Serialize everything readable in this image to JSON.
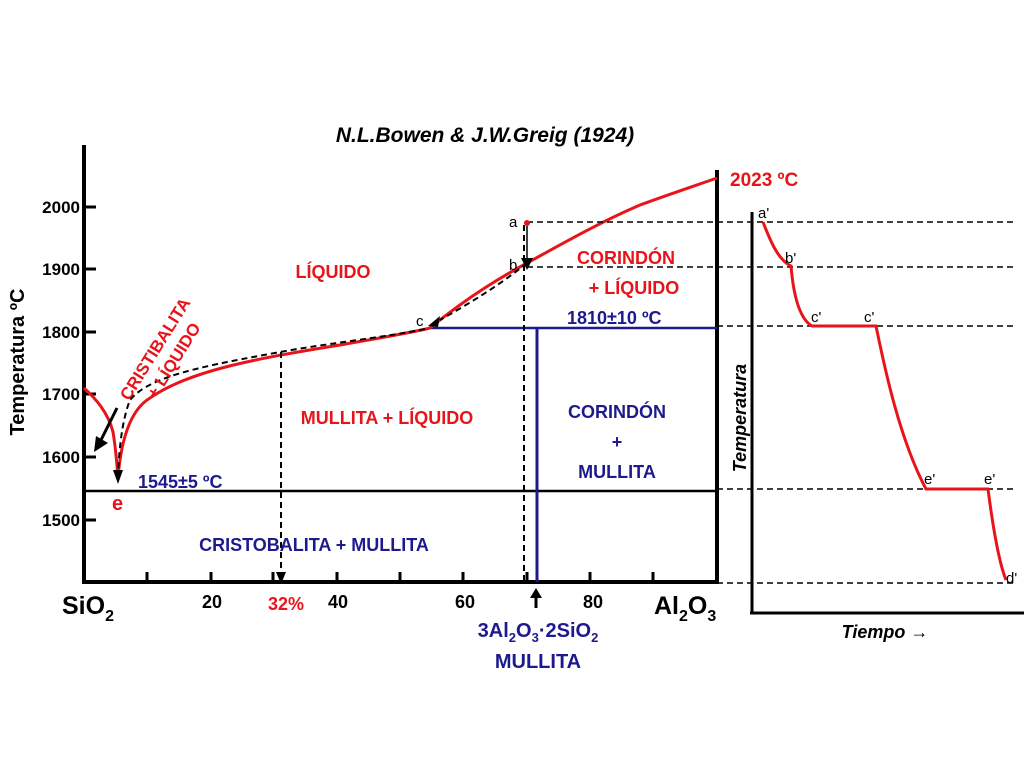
{
  "title": "N.L.Bowen & J.W.Greig (1924)",
  "colors": {
    "red": "#e8141a",
    "blue": "#1c1a8c",
    "black": "#000000"
  },
  "phase_diagram": {
    "y_axis_label": "Temperatura ºC",
    "y_ticks": [
      "2000",
      "1900",
      "1800",
      "1700",
      "1600",
      "1500"
    ],
    "x_ticks": [
      "20",
      "40",
      "60",
      "80"
    ],
    "x_highlight": "32%",
    "left_end": {
      "main": "SiO",
      "sub": "2"
    },
    "right_end": {
      "main": "Al",
      "sub1": "2",
      "mid": "O",
      "sub2": "3"
    },
    "melting_point_label": "2023 ºC",
    "eutectic_label": "1545±5 ºC",
    "eutectic_point": "e",
    "peritectic_label": "1810±10 ºC",
    "points": {
      "a": "a",
      "b": "b",
      "c": "c"
    },
    "regions": {
      "liquid": "LÍQUIDO",
      "cristobalite_liquid_1": "CRISTIBALITA",
      "cristobalite_liquid_2": "+ LÍQUIDO",
      "corundum_liquid_1": "CORINDÓN",
      "corundum_liquid_2": "+ LÍQUIDO",
      "mullite_liquid": "MULLITA + LÍQUIDO",
      "corundum_mullite_1": "CORINDÓN",
      "corundum_mullite_2": "+",
      "corundum_mullite_3": "MULLITA",
      "cristobalite_mullite": "CRISTOBALITA + MULLITA"
    },
    "mullite_formula": {
      "p1": "3Al",
      "s1": "2",
      "p2": "O",
      "s2": "3",
      "p3": "·2SiO",
      "s3": "2"
    },
    "mullite_name": "MULLITA"
  },
  "cooling_curve": {
    "y_axis_label": "Temperatura",
    "x_axis_label": "Tiempo →",
    "points": [
      "a'",
      "b'",
      "c'",
      "c'",
      "e'",
      "e'",
      "d'"
    ]
  }
}
